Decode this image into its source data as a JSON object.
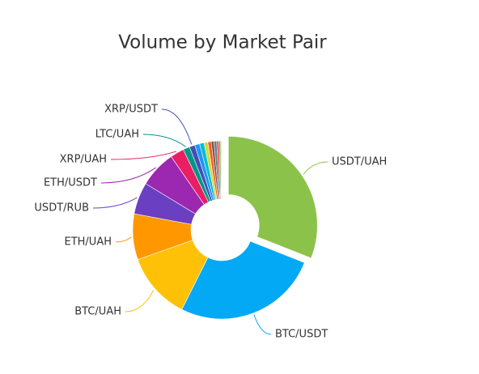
{
  "chart_data": {
    "type": "pie",
    "title": "Volume by Market Pair",
    "categories": [
      "USDT/UAH",
      "BTC/USDT",
      "BTC/UAH",
      "ETH/UAH",
      "USDT/RUB",
      "ETH/USDT",
      "XRP/UAH",
      "LTC/UAH",
      "XRP/USDT",
      null,
      null,
      null,
      null,
      null,
      null,
      null,
      null,
      null
    ],
    "values": [
      31,
      26.4,
      12.2,
      8.3,
      5.8,
      6.7,
      2.5,
      1.2,
      1,
      0.9,
      0.8,
      0.7,
      0.6,
      0.5,
      0.5,
      0.4,
      0.3,
      0.2
    ],
    "colors": [
      "#8bc34a",
      "#03a9f4",
      "#ffc107",
      "#ff9800",
      "#6a3fc1",
      "#9c27b0",
      "#e91e63",
      "#009688",
      "#3f51b5",
      "#2196f3",
      "#00bcd4",
      "#cddc39",
      "#ff5722",
      "#795548",
      "#607d8b",
      "#f44336",
      "#4caf50",
      "#ffeb3b"
    ]
  }
}
